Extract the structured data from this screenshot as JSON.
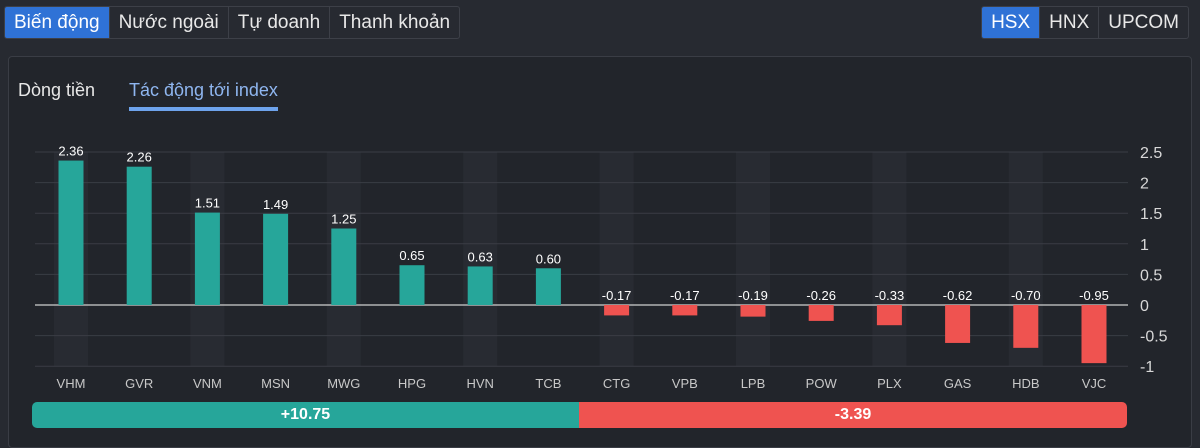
{
  "tabs": [
    {
      "label": "Biến động",
      "active": true
    },
    {
      "label": "Nước ngoài"
    },
    {
      "label": "Tự doanh"
    },
    {
      "label": "Thanh khoản"
    }
  ],
  "exchanges": [
    {
      "label": "HSX",
      "active": true
    },
    {
      "label": "HNX"
    },
    {
      "label": "UPCOM"
    }
  ],
  "subtabs": [
    {
      "label": "Dòng tiền"
    },
    {
      "label": "Tác động tới index",
      "active": true
    }
  ],
  "colors": {
    "positive": "#26a69a",
    "negative": "#ef5350",
    "accent": "#2f72d6"
  },
  "summary": {
    "positive": "+10.75",
    "negative": "-3.39"
  },
  "chart_data": {
    "type": "bar",
    "categories": [
      "VHM",
      "GVR",
      "VNM",
      "MSN",
      "MWG",
      "HPG",
      "HVN",
      "TCB",
      "CTG",
      "VPB",
      "LPB",
      "POW",
      "PLX",
      "GAS",
      "HDB",
      "VJC"
    ],
    "values": [
      2.36,
      2.26,
      1.51,
      1.49,
      1.25,
      0.65,
      0.63,
      0.6,
      -0.17,
      -0.17,
      -0.19,
      -0.26,
      -0.33,
      -0.62,
      -0.7,
      -0.95
    ],
    "labels": [
      "2.36",
      "2.26",
      "1.51",
      "1.49",
      "1.25",
      "0.65",
      "0.63",
      "0.60",
      "-0.17",
      "-0.17",
      "-0.19",
      "-0.26",
      "-0.33",
      "-0.62",
      "-0.70",
      "-0.95"
    ],
    "yticks": [
      "2.5",
      "2",
      "1.5",
      "1",
      "0.5",
      "0",
      "-0.5",
      "-1"
    ],
    "ylim": [
      -1,
      2.5
    ],
    "y_axis": "right",
    "grid": true
  }
}
